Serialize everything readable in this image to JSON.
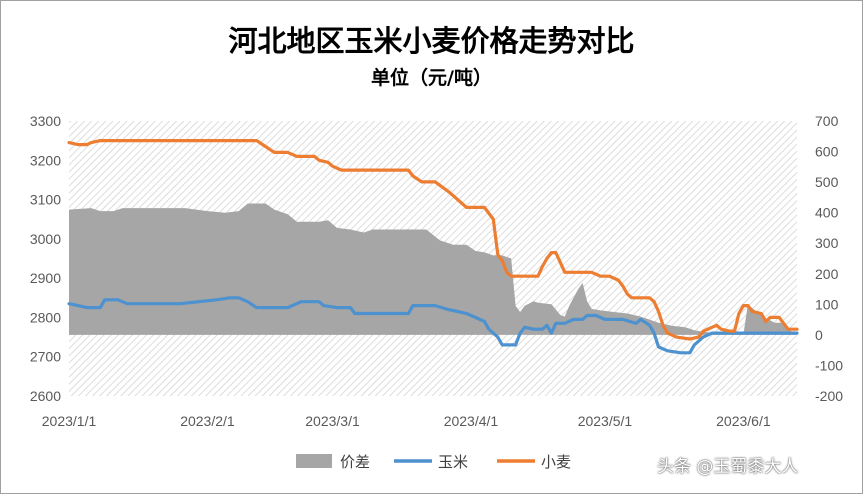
{
  "chart_data": {
    "type": "area+line",
    "title": "河北地区玉米小麦价格走势对比",
    "subtitle": "单位（元/吨）",
    "x_tick_labels": [
      "2023/1/1",
      "2023/2/1",
      "2023/3/1",
      "2023/4/1",
      "2023/5/1",
      "2023/6/1"
    ],
    "x_tick_dates": [
      "2023-01-01",
      "2023-02-01",
      "2023-03-01",
      "2023-04-01",
      "2023-05-01",
      "2023-06-01"
    ],
    "x_range": [
      "2023-01-01",
      "2023-06-13"
    ],
    "y_left": {
      "min": 2600,
      "max": 3300,
      "step": 100
    },
    "y_right": {
      "min": -200,
      "max": 700,
      "step": 100
    },
    "legend_position": "bottom",
    "series": [
      {
        "name": "价差",
        "axis": "right",
        "style": "area",
        "color": "#a6a6a6",
        "points": [
          [
            "2023-01-01",
            410
          ],
          [
            "2023-01-03",
            412
          ],
          [
            "2023-01-06",
            415
          ],
          [
            "2023-01-08",
            405
          ],
          [
            "2023-01-11",
            405
          ],
          [
            "2023-01-13",
            415
          ],
          [
            "2023-01-20",
            415
          ],
          [
            "2023-01-27",
            415
          ],
          [
            "2023-02-01",
            405
          ],
          [
            "2023-02-05",
            400
          ],
          [
            "2023-02-08",
            405
          ],
          [
            "2023-02-10",
            430
          ],
          [
            "2023-02-14",
            430
          ],
          [
            "2023-02-16",
            410
          ],
          [
            "2023-02-19",
            395
          ],
          [
            "2023-02-21",
            370
          ],
          [
            "2023-02-26",
            370
          ],
          [
            "2023-02-28",
            375
          ],
          [
            "2023-03-02",
            350
          ],
          [
            "2023-03-05",
            345
          ],
          [
            "2023-03-08",
            335
          ],
          [
            "2023-03-10",
            345
          ],
          [
            "2023-03-14",
            345
          ],
          [
            "2023-03-18",
            345
          ],
          [
            "2023-03-22",
            345
          ],
          [
            "2023-03-25",
            310
          ],
          [
            "2023-03-28",
            295
          ],
          [
            "2023-03-31",
            295
          ],
          [
            "2023-04-02",
            275
          ],
          [
            "2023-04-04",
            270
          ],
          [
            "2023-04-06",
            260
          ],
          [
            "2023-04-08",
            260
          ],
          [
            "2023-04-10",
            250
          ],
          [
            "2023-04-11",
            95
          ],
          [
            "2023-04-12",
            75
          ],
          [
            "2023-04-13",
            95
          ],
          [
            "2023-04-15",
            110
          ],
          [
            "2023-04-16",
            105
          ],
          [
            "2023-04-19",
            100
          ],
          [
            "2023-04-21",
            65
          ],
          [
            "2023-04-22",
            60
          ],
          [
            "2023-04-23",
            95
          ],
          [
            "2023-04-25",
            150
          ],
          [
            "2023-04-26",
            170
          ],
          [
            "2023-04-27",
            110
          ],
          [
            "2023-04-28",
            85
          ],
          [
            "2023-04-30",
            80
          ],
          [
            "2023-05-03",
            75
          ],
          [
            "2023-05-06",
            70
          ],
          [
            "2023-05-09",
            60
          ],
          [
            "2023-05-11",
            50
          ],
          [
            "2023-05-13",
            40
          ],
          [
            "2023-05-16",
            30
          ],
          [
            "2023-05-19",
            25
          ],
          [
            "2023-05-21",
            15
          ],
          [
            "2023-05-23",
            10
          ],
          [
            "2023-05-26",
            5
          ],
          [
            "2023-05-28",
            5
          ],
          [
            "2023-05-30",
            5
          ],
          [
            "2023-06-01",
            2
          ],
          [
            "2023-06-02",
            100
          ],
          [
            "2023-06-04",
            75
          ],
          [
            "2023-06-06",
            55
          ],
          [
            "2023-06-08",
            40
          ],
          [
            "2023-06-10",
            40
          ],
          [
            "2023-06-12",
            8
          ],
          [
            "2023-06-13",
            8
          ]
        ]
      },
      {
        "name": "玉米",
        "axis": "left",
        "style": "line",
        "color": "#4d91cf",
        "points": [
          [
            "2023-01-01",
            2835
          ],
          [
            "2023-01-03",
            2830
          ],
          [
            "2023-01-05",
            2825
          ],
          [
            "2023-01-08",
            2825
          ],
          [
            "2023-01-09",
            2845
          ],
          [
            "2023-01-12",
            2845
          ],
          [
            "2023-01-14",
            2835
          ],
          [
            "2023-01-18",
            2835
          ],
          [
            "2023-01-22",
            2835
          ],
          [
            "2023-01-26",
            2835
          ],
          [
            "2023-01-30",
            2840
          ],
          [
            "2023-02-03",
            2845
          ],
          [
            "2023-02-06",
            2850
          ],
          [
            "2023-02-08",
            2850
          ],
          [
            "2023-02-10",
            2840
          ],
          [
            "2023-02-12",
            2825
          ],
          [
            "2023-02-16",
            2825
          ],
          [
            "2023-02-19",
            2825
          ],
          [
            "2023-02-22",
            2840
          ],
          [
            "2023-02-26",
            2840
          ],
          [
            "2023-02-27",
            2830
          ],
          [
            "2023-03-02",
            2825
          ],
          [
            "2023-03-05",
            2825
          ],
          [
            "2023-03-06",
            2810
          ],
          [
            "2023-03-10",
            2810
          ],
          [
            "2023-03-14",
            2810
          ],
          [
            "2023-03-18",
            2810
          ],
          [
            "2023-03-19",
            2830
          ],
          [
            "2023-03-24",
            2830
          ],
          [
            "2023-03-27",
            2820
          ],
          [
            "2023-03-29",
            2815
          ],
          [
            "2023-03-31",
            2810
          ],
          [
            "2023-04-02",
            2800
          ],
          [
            "2023-04-04",
            2790
          ],
          [
            "2023-04-05",
            2770
          ],
          [
            "2023-04-07",
            2750
          ],
          [
            "2023-04-08",
            2730
          ],
          [
            "2023-04-11",
            2730
          ],
          [
            "2023-04-12",
            2760
          ],
          [
            "2023-04-13",
            2775
          ],
          [
            "2023-04-15",
            2770
          ],
          [
            "2023-04-17",
            2770
          ],
          [
            "2023-04-18",
            2780
          ],
          [
            "2023-04-19",
            2760
          ],
          [
            "2023-04-20",
            2785
          ],
          [
            "2023-04-22",
            2785
          ],
          [
            "2023-04-24",
            2795
          ],
          [
            "2023-04-26",
            2795
          ],
          [
            "2023-04-27",
            2805
          ],
          [
            "2023-04-29",
            2805
          ],
          [
            "2023-05-01",
            2795
          ],
          [
            "2023-05-03",
            2795
          ],
          [
            "2023-05-05",
            2795
          ],
          [
            "2023-05-08",
            2785
          ],
          [
            "2023-05-09",
            2795
          ],
          [
            "2023-05-11",
            2780
          ],
          [
            "2023-05-12",
            2760
          ],
          [
            "2023-05-13",
            2725
          ],
          [
            "2023-05-15",
            2715
          ],
          [
            "2023-05-18",
            2710
          ],
          [
            "2023-05-20",
            2710
          ],
          [
            "2023-05-21",
            2730
          ],
          [
            "2023-05-23",
            2750
          ],
          [
            "2023-05-25",
            2760
          ],
          [
            "2023-05-28",
            2760
          ],
          [
            "2023-06-01",
            2760
          ],
          [
            "2023-06-06",
            2760
          ],
          [
            "2023-06-10",
            2760
          ],
          [
            "2023-06-13",
            2760
          ]
        ]
      },
      {
        "name": "小麦",
        "axis": "left",
        "style": "line",
        "color": "#ed7d31",
        "points": [
          [
            "2023-01-01",
            3245
          ],
          [
            "2023-01-03",
            3240
          ],
          [
            "2023-01-05",
            3240
          ],
          [
            "2023-01-06",
            3245
          ],
          [
            "2023-01-08",
            3250
          ],
          [
            "2023-01-14",
            3250
          ],
          [
            "2023-01-20",
            3250
          ],
          [
            "2023-01-26",
            3250
          ],
          [
            "2023-02-01",
            3250
          ],
          [
            "2023-02-08",
            3250
          ],
          [
            "2023-02-12",
            3250
          ],
          [
            "2023-02-14",
            3235
          ],
          [
            "2023-02-16",
            3220
          ],
          [
            "2023-02-19",
            3220
          ],
          [
            "2023-02-21",
            3210
          ],
          [
            "2023-02-25",
            3210
          ],
          [
            "2023-02-26",
            3200
          ],
          [
            "2023-02-28",
            3195
          ],
          [
            "2023-03-01",
            3185
          ],
          [
            "2023-03-03",
            3175
          ],
          [
            "2023-03-06",
            3175
          ],
          [
            "2023-03-10",
            3175
          ],
          [
            "2023-03-14",
            3175
          ],
          [
            "2023-03-18",
            3175
          ],
          [
            "2023-03-19",
            3160
          ],
          [
            "2023-03-21",
            3145
          ],
          [
            "2023-03-24",
            3145
          ],
          [
            "2023-03-27",
            3120
          ],
          [
            "2023-03-29",
            3100
          ],
          [
            "2023-03-31",
            3080
          ],
          [
            "2023-04-04",
            3080
          ],
          [
            "2023-04-06",
            3050
          ],
          [
            "2023-04-07",
            2960
          ],
          [
            "2023-04-08",
            2945
          ],
          [
            "2023-04-09",
            2915
          ],
          [
            "2023-04-10",
            2905
          ],
          [
            "2023-04-12",
            2905
          ],
          [
            "2023-04-14",
            2905
          ],
          [
            "2023-04-16",
            2905
          ],
          [
            "2023-04-17",
            2930
          ],
          [
            "2023-04-18",
            2950
          ],
          [
            "2023-04-19",
            2965
          ],
          [
            "2023-04-20",
            2965
          ],
          [
            "2023-04-21",
            2940
          ],
          [
            "2023-04-22",
            2915
          ],
          [
            "2023-04-24",
            2915
          ],
          [
            "2023-04-28",
            2915
          ],
          [
            "2023-04-30",
            2905
          ],
          [
            "2023-05-02",
            2905
          ],
          [
            "2023-05-04",
            2895
          ],
          [
            "2023-05-05",
            2880
          ],
          [
            "2023-05-06",
            2860
          ],
          [
            "2023-05-07",
            2850
          ],
          [
            "2023-05-09",
            2850
          ],
          [
            "2023-05-11",
            2850
          ],
          [
            "2023-05-12",
            2840
          ],
          [
            "2023-05-13",
            2815
          ],
          [
            "2023-05-14",
            2780
          ],
          [
            "2023-05-15",
            2760
          ],
          [
            "2023-05-16",
            2755
          ],
          [
            "2023-05-17",
            2750
          ],
          [
            "2023-05-20",
            2745
          ],
          [
            "2023-05-22",
            2750
          ],
          [
            "2023-05-23",
            2765
          ],
          [
            "2023-05-24",
            2770
          ],
          [
            "2023-05-26",
            2780
          ],
          [
            "2023-05-27",
            2770
          ],
          [
            "2023-05-29",
            2765
          ],
          [
            "2023-05-30",
            2765
          ],
          [
            "2023-05-31",
            2810
          ],
          [
            "2023-06-01",
            2830
          ],
          [
            "2023-06-02",
            2830
          ],
          [
            "2023-06-03",
            2815
          ],
          [
            "2023-06-05",
            2810
          ],
          [
            "2023-06-06",
            2790
          ],
          [
            "2023-06-07",
            2800
          ],
          [
            "2023-06-09",
            2800
          ],
          [
            "2023-06-11",
            2770
          ],
          [
            "2023-06-13",
            2770
          ]
        ]
      }
    ]
  },
  "watermark": "头条 @玉蜀黍大人"
}
